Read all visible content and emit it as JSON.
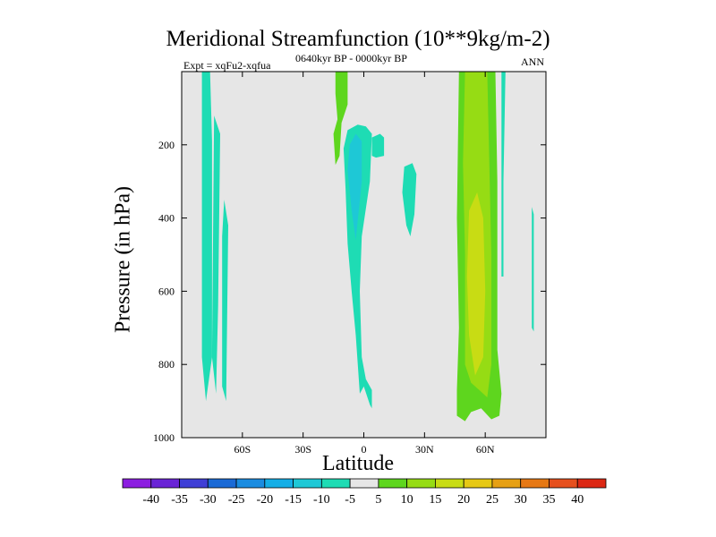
{
  "chart_data": {
    "type": "heatmap",
    "title": "Meridional Streamfunction (10**9kg/m-2)",
    "subtitle_left": "Expt = xqFu2-xqfua",
    "subtitle_center": "0640kyr BP - 0000kyr BP",
    "subtitle_right": "ANN",
    "xlabel": "Latitude",
    "ylabel": "Pressure (in hPa)",
    "xlim": [
      -90,
      90
    ],
    "ylim": [
      1000,
      0
    ],
    "x_ticks": [
      {
        "value": -60,
        "label": "60S"
      },
      {
        "value": -30,
        "label": "30S"
      },
      {
        "value": 0,
        "label": "0"
      },
      {
        "value": 30,
        "label": "30N"
      },
      {
        "value": 60,
        "label": "60N"
      }
    ],
    "y_ticks": [
      {
        "value": 200,
        "label": "200"
      },
      {
        "value": 400,
        "label": "400"
      },
      {
        "value": 600,
        "label": "600"
      },
      {
        "value": 800,
        "label": "800"
      },
      {
        "value": 1000,
        "label": "1000"
      }
    ],
    "background_value_range": [
      -5,
      5
    ],
    "background_color": "#e6e6e6",
    "colorbar": {
      "levels": [
        "-40",
        "-35",
        "-30",
        "-25",
        "-20",
        "-15",
        "-10",
        "-5",
        "5",
        "10",
        "15",
        "20",
        "25",
        "30",
        "35",
        "40"
      ],
      "colors": [
        "#8c1ee0",
        "#6a24d6",
        "#3f3fd6",
        "#1a6ad6",
        "#1a8ce0",
        "#14aee6",
        "#1ec8d6",
        "#1edcb4",
        "#e6e6e6",
        "#5ed61e",
        "#96dc14",
        "#c8dc14",
        "#e6c814",
        "#e6a014",
        "#e67814",
        "#e6501e",
        "#dc2814"
      ]
    },
    "regions": [
      {
        "label": "SH high-latitude cell",
        "category": "-10 to -5",
        "color": "#1edcb4",
        "points": [
          [
            -80,
            0
          ],
          [
            -76,
            0
          ],
          [
            -75,
            190
          ],
          [
            -75,
            780
          ],
          [
            -78,
            900
          ],
          [
            -80,
            780
          ]
        ]
      },
      {
        "label": "SH high-latitude cell 2",
        "category": "-10 to -5",
        "color": "#1edcb4",
        "points": [
          [
            -74,
            120
          ],
          [
            -71,
            170
          ],
          [
            -72,
            640
          ],
          [
            -73,
            880
          ],
          [
            -75,
            780
          ]
        ]
      },
      {
        "label": "SH high-latitude cell 3",
        "category": "-10 to -5",
        "color": "#1edcb4",
        "points": [
          [
            -69,
            350
          ],
          [
            -67,
            420
          ],
          [
            -68,
            900
          ],
          [
            -70,
            860
          ],
          [
            -70,
            450
          ]
        ]
      },
      {
        "label": "Tropical upper strip",
        "category": "5 to 10",
        "color": "#5ed61e",
        "points": [
          [
            -14,
            0
          ],
          [
            -8,
            0
          ],
          [
            -8,
            90
          ],
          [
            -11,
            140
          ],
          [
            -12,
            230
          ],
          [
            -14,
            255
          ],
          [
            -15,
            170
          ],
          [
            -13,
            130
          ],
          [
            -14,
            60
          ]
        ]
      },
      {
        "label": "Tropical cell",
        "category": "-10 to -5",
        "color": "#1edcb4",
        "points": [
          [
            -8,
            160
          ],
          [
            -3,
            145
          ],
          [
            1,
            150
          ],
          [
            4,
            170
          ],
          [
            3,
            300
          ],
          [
            -1,
            450
          ],
          [
            -2,
            600
          ],
          [
            -1,
            780
          ],
          [
            1,
            840
          ],
          [
            4,
            870
          ],
          [
            4,
            920
          ],
          [
            3,
            910
          ],
          [
            0,
            860
          ],
          [
            -2,
            880
          ],
          [
            -4,
            720
          ],
          [
            -6,
            600
          ],
          [
            -8,
            470
          ],
          [
            -9,
            320
          ],
          [
            -10,
            210
          ]
        ]
      },
      {
        "label": "Tropical cell core",
        "category": "-15 to -10",
        "color": "#1ec8d6",
        "points": [
          [
            -7,
            200
          ],
          [
            -4,
            170
          ],
          [
            -1,
            190
          ],
          [
            -1,
            300
          ],
          [
            -4,
            460
          ],
          [
            -6,
            380
          ],
          [
            -8,
            270
          ]
        ]
      },
      {
        "label": "NH subtropical cell",
        "category": "-10 to -5",
        "color": "#1edcb4",
        "points": [
          [
            4,
            180
          ],
          [
            8,
            170
          ],
          [
            10,
            180
          ],
          [
            10,
            230
          ],
          [
            6,
            235
          ],
          [
            4,
            230
          ]
        ]
      },
      {
        "label": "NH subtropical cell 2",
        "category": "-10 to -5",
        "color": "#1edcb4",
        "points": [
          [
            20,
            260
          ],
          [
            24,
            250
          ],
          [
            26,
            280
          ],
          [
            25,
            390
          ],
          [
            23,
            450
          ],
          [
            21,
            420
          ],
          [
            19,
            330
          ]
        ]
      },
      {
        "label": "NH mid-latitude cell",
        "category": "5 to 10",
        "color": "#5ed61e",
        "points": [
          [
            47,
            0
          ],
          [
            65,
            0
          ],
          [
            66,
            300
          ],
          [
            66,
            760
          ],
          [
            68,
            880
          ],
          [
            67,
            940
          ],
          [
            63,
            950
          ],
          [
            58,
            920
          ],
          [
            53,
            930
          ],
          [
            50,
            955
          ],
          [
            46,
            940
          ],
          [
            46,
            870
          ],
          [
            47,
            700
          ],
          [
            46,
            400
          ]
        ]
      },
      {
        "label": "NH mid-latitude core",
        "category": "10 to 15",
        "color": "#96dc14",
        "points": [
          [
            50,
            0
          ],
          [
            61,
            0
          ],
          [
            62,
            250
          ],
          [
            63,
            500
          ],
          [
            63,
            800
          ],
          [
            61,
            890
          ],
          [
            57,
            870
          ],
          [
            53,
            850
          ],
          [
            50,
            800
          ],
          [
            50,
            500
          ],
          [
            49,
            250
          ]
        ]
      },
      {
        "label": "NH mid-latitude max",
        "category": "15 to 20",
        "color": "#c8dc14",
        "points": [
          [
            52,
            380
          ],
          [
            56,
            330
          ],
          [
            59,
            400
          ],
          [
            60,
            600
          ],
          [
            59,
            780
          ],
          [
            55,
            830
          ],
          [
            52,
            720
          ],
          [
            51,
            560
          ]
        ]
      },
      {
        "label": "NH high-latitude cell",
        "category": "-10 to -5",
        "color": "#1edcb4",
        "points": [
          [
            68,
            0
          ],
          [
            70,
            0
          ],
          [
            69,
            300
          ],
          [
            69,
            560
          ],
          [
            68,
            560
          ],
          [
            68,
            300
          ]
        ]
      },
      {
        "label": "NH polar cell",
        "category": "-10 to -5",
        "color": "#1edcb4",
        "points": [
          [
            83,
            370
          ],
          [
            84,
            390
          ],
          [
            84,
            710
          ],
          [
            83,
            700
          ]
        ]
      }
    ]
  }
}
